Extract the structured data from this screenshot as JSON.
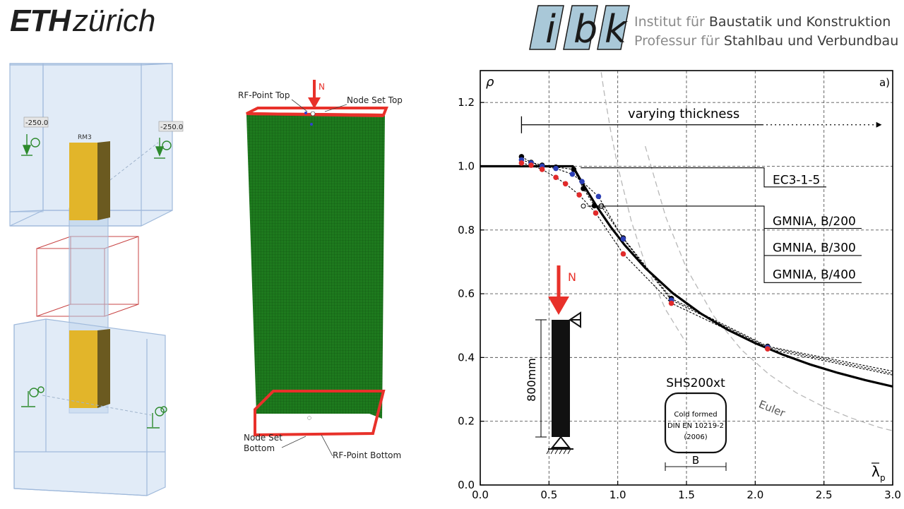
{
  "header": {
    "eth_bold": "ETH",
    "eth_light": "zürich",
    "ibk_letters": [
      "i",
      "b",
      "k"
    ],
    "institute_prefix": "Institut für",
    "institute_name": "Baustatik und Konstruktion",
    "chair_prefix": "Professur für",
    "chair_name": "Stahlbau und Verbundbau"
  },
  "fe_setup": {
    "load_left": "-250.0",
    "load_right": "-250.0",
    "specimen_label": "RM3"
  },
  "mesh_view": {
    "load_label": "N",
    "rf_point_top": "RF-Point Top",
    "node_set_top": "Node Set Top",
    "node_set_bottom_line1": "Node Set",
    "node_set_bottom_line2": "Bottom",
    "rf_point_bottom": "RF-Point Bottom"
  },
  "colors": {
    "accent_red": "#e8312a",
    "mesh_green": "#1e7a1e",
    "ibk_blue": "#a9c8d8",
    "euler_gray": "#b8b8b8"
  },
  "chart_data": {
    "type": "line",
    "panel_label": "a)",
    "ylabel": "ρ",
    "xlabel": "λ",
    "xlabel_sub": "p",
    "xlim": [
      0,
      3
    ],
    "ylim": [
      0,
      1.3
    ],
    "xticks": [
      0.0,
      0.5,
      1.0,
      1.5,
      2.0,
      2.5,
      3.0
    ],
    "xtick_labels": [
      "0.0",
      "0.5",
      "1.0",
      "1.5",
      "2.0",
      "2.5",
      "3.0"
    ],
    "yticks": [
      0.0,
      0.2,
      0.4,
      0.6,
      0.8,
      1.0,
      1.2
    ],
    "ytick_labels": [
      "0.0",
      "0.2",
      "0.4",
      "0.6",
      "0.8",
      "1.0",
      "1.2"
    ],
    "grid": true,
    "annotation_arrow": "varying thickness",
    "annotation_curve": "Euler",
    "series": [
      {
        "name": "EC3-1-5",
        "x": [
          0.0,
          0.673,
          0.75,
          0.85,
          0.95,
          1.05,
          1.2,
          1.4,
          1.6,
          1.8,
          2.0,
          2.2,
          2.4,
          2.6,
          2.8,
          3.0
        ],
        "y": [
          1.0,
          1.0,
          0.942,
          0.872,
          0.809,
          0.753,
          0.681,
          0.602,
          0.539,
          0.487,
          0.445,
          0.409,
          0.378,
          0.352,
          0.329,
          0.309
        ]
      },
      {
        "name": "GMNIA, B/200",
        "x": [
          0.3,
          0.37,
          0.45,
          0.55,
          0.68,
          0.75,
          0.83,
          0.88,
          1.04,
          1.39,
          2.09,
          3.0
        ],
        "y": [
          1.03,
          1.012,
          1.003,
          0.997,
          0.99,
          0.93,
          0.876,
          0.875,
          0.775,
          0.585,
          0.435,
          0.357
        ]
      },
      {
        "name": "GMNIA, B/300",
        "x": [
          0.3,
          0.37,
          0.45,
          0.55,
          0.67,
          0.74,
          0.86,
          1.04,
          1.39,
          2.09,
          3.0
        ],
        "y": [
          1.02,
          1.01,
          1.0,
          0.993,
          0.975,
          0.952,
          0.905,
          0.772,
          0.58,
          0.432,
          0.35
        ]
      },
      {
        "name": "GMNIA, B/400",
        "x": [
          0.3,
          0.37,
          0.45,
          0.55,
          0.62,
          0.72,
          0.84,
          1.04,
          1.39,
          2.09,
          3.0
        ],
        "y": [
          1.01,
          1.003,
          0.99,
          0.965,
          0.945,
          0.91,
          0.853,
          0.725,
          0.57,
          0.427,
          0.345
        ]
      }
    ],
    "euler_upper": {
      "x": [
        0.86,
        0.9,
        0.95,
        1.0,
        1.1,
        1.2,
        1.35,
        1.5
      ],
      "y": [
        1.352,
        1.235,
        1.108,
        1.0,
        0.826,
        0.694,
        0.549,
        0.444
      ]
    },
    "euler_lower": {
      "x": [
        1.2,
        1.35,
        1.5,
        1.7,
        1.9,
        2.1,
        2.3,
        2.5,
        2.7,
        2.9,
        3.0
      ],
      "y": [
        1.063,
        0.84,
        0.68,
        0.529,
        0.424,
        0.347,
        0.289,
        0.245,
        0.21,
        0.181,
        0.17
      ]
    },
    "inset": {
      "load_label": "N",
      "length_label": "800mm",
      "section_label": "SHS200xt",
      "section_line1": "Cold formed",
      "section_line2": "DIN EN 10219-2",
      "section_line3": "(2006)",
      "width_label": "B"
    }
  }
}
